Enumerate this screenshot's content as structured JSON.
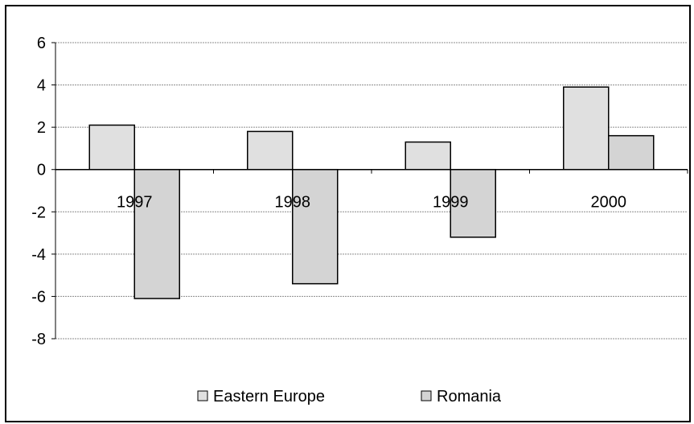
{
  "chart_data": {
    "type": "bar",
    "categories": [
      "1997",
      "1998",
      "1999",
      "2000"
    ],
    "series": [
      {
        "name": "Eastern Europe",
        "values": [
          2.1,
          1.8,
          1.3,
          3.9
        ],
        "color": "#e0e0e0"
      },
      {
        "name": "Romania",
        "values": [
          -6.1,
          -5.4,
          -3.2,
          1.6
        ],
        "color": "#d4d4d4"
      }
    ],
    "yticks": [
      6,
      4,
      2,
      0,
      -2,
      -4,
      -6,
      -8
    ],
    "ylim": [
      -8,
      6
    ],
    "grid": true,
    "legend_position": "bottom"
  }
}
